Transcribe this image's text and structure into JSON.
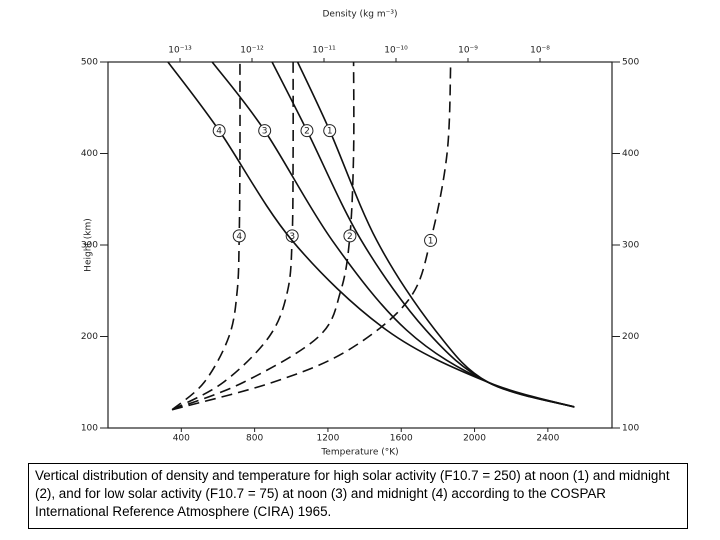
{
  "chart_data": {
    "type": "line",
    "title": "Density (kg m⁻³)",
    "xlabel": "Temperature (°K)",
    "ylabel": "Height (km)",
    "xlim": [
      0,
      2750
    ],
    "xticks": [
      400,
      800,
      1200,
      1600,
      2000,
      2400
    ],
    "x2scale": "log",
    "x2lim": [
      1e-14,
      1e-07
    ],
    "x2ticks": [
      {
        "value": 1e-13,
        "label": "10⁻¹³"
      },
      {
        "value": 1e-12,
        "label": "10⁻¹²"
      },
      {
        "value": 1e-11,
        "label": "10⁻¹¹"
      },
      {
        "value": 1e-10,
        "label": "10⁻¹⁰"
      },
      {
        "value": 1e-09,
        "label": "10⁻⁹"
      },
      {
        "value": 1e-08,
        "label": "10⁻⁸"
      }
    ],
    "ylim": [
      100,
      500
    ],
    "yticks": [
      100,
      200,
      300,
      400,
      500
    ],
    "y2lim": [
      100,
      500
    ],
    "y2ticks": [
      100,
      200,
      300,
      400,
      500
    ],
    "series": [
      {
        "label": "1",
        "color": "#111111",
        "dashed": true,
        "x": [
          350,
          900,
          1310,
          1640,
          1760,
          1850,
          1870
        ],
        "values": [
          120,
          150,
          185,
          240,
          305,
          400,
          500
        ]
      },
      {
        "label": "2",
        "color": "#111111",
        "dashed": true,
        "x": [
          350,
          740,
          1150,
          1270,
          1320,
          1340,
          1340
        ],
        "values": [
          120,
          150,
          200,
          250,
          310,
          400,
          500
        ]
      },
      {
        "label": "3",
        "color": "#111111",
        "dashed": true,
        "x": [
          350,
          630,
          880,
          980,
          1005,
          1010,
          1010
        ],
        "values": [
          120,
          150,
          200,
          250,
          310,
          400,
          500
        ]
      },
      {
        "label": "4",
        "color": "#111111",
        "dashed": true,
        "x": [
          350,
          525,
          660,
          705,
          716,
          720,
          720
        ],
        "values": [
          120,
          150,
          200,
          250,
          310,
          400,
          500
        ]
      },
      {
        "label": "1",
        "color": "#111111",
        "dashed": false,
        "axis": "x2",
        "x": [
          3e-08,
          1.9e-09,
          3.5e-10,
          5.4e-11,
          1.2e-11,
          4.3e-12
        ],
        "values": [
          123,
          150,
          207,
          305,
          425,
          500
        ]
      },
      {
        "label": "2",
        "color": "#111111",
        "dashed": false,
        "axis": "x2",
        "x": [
          3e-08,
          1.9e-09,
          2.6e-10,
          3.3e-11,
          5.8e-12,
          1.9e-12
        ],
        "values": [
          123,
          150,
          207,
          305,
          425,
          500
        ]
      },
      {
        "label": "3",
        "color": "#111111",
        "dashed": false,
        "axis": "x2",
        "x": [
          3e-08,
          1.9e-09,
          1.4e-10,
          1.3e-11,
          1.5e-12,
          2.8e-13
        ],
        "values": [
          123,
          150,
          207,
          305,
          425,
          500
        ]
      },
      {
        "label": "4",
        "color": "#111111",
        "dashed": false,
        "axis": "x2",
        "x": [
          3e-08,
          1.9e-09,
          7.4e-11,
          3.6e-12,
          3.5e-13,
          6.8e-14
        ],
        "values": [
          123,
          150,
          207,
          305,
          425,
          500
        ]
      }
    ],
    "caption": "Vertical distribution of density and temperature for high solar activity (F10.7 = 250) at noon (1) and midnight (2), and for low solar activity (F10.7 = 75) at noon (3) and midnight (4) according to the COSPAR International Reference Atmosphere (CIRA) 1965."
  }
}
